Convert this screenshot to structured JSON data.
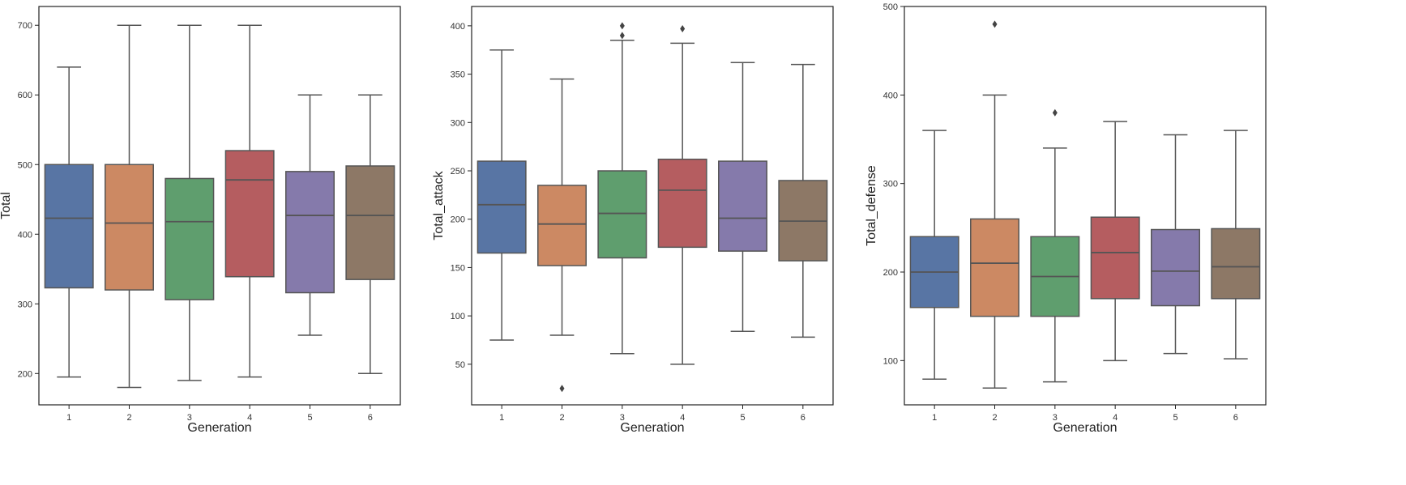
{
  "chart_data": [
    {
      "type": "box",
      "xlabel": "Generation",
      "ylabel": "Total",
      "categories": [
        "1",
        "2",
        "3",
        "4",
        "5",
        "6"
      ],
      "ylim": [
        155,
        727
      ],
      "yticks": [
        200,
        300,
        400,
        500,
        600,
        700
      ],
      "boxes": [
        {
          "whislo": 195,
          "q1": 323,
          "med": 423,
          "q3": 500,
          "whishi": 640,
          "fliers": []
        },
        {
          "whislo": 180,
          "q1": 320,
          "med": 416,
          "q3": 500,
          "whishi": 700,
          "fliers": []
        },
        {
          "whislo": 190,
          "q1": 306,
          "med": 418,
          "q3": 480,
          "whishi": 700,
          "fliers": []
        },
        {
          "whislo": 195,
          "q1": 339,
          "med": 478,
          "q3": 520,
          "whishi": 700,
          "fliers": []
        },
        {
          "whislo": 255,
          "q1": 316,
          "med": 427,
          "q3": 490,
          "whishi": 600,
          "fliers": []
        },
        {
          "whislo": 200,
          "q1": 335,
          "med": 427,
          "q3": 498,
          "whishi": 600,
          "fliers": []
        }
      ]
    },
    {
      "type": "box",
      "xlabel": "Generation",
      "ylabel": "Total_attack",
      "categories": [
        "1",
        "2",
        "3",
        "4",
        "5",
        "6"
      ],
      "ylim": [
        8,
        420
      ],
      "yticks": [
        50,
        100,
        150,
        200,
        250,
        300,
        350,
        400
      ],
      "boxes": [
        {
          "whislo": 75,
          "q1": 165,
          "med": 215,
          "q3": 260,
          "whishi": 375,
          "fliers": []
        },
        {
          "whislo": 80,
          "q1": 152,
          "med": 195,
          "q3": 235,
          "whishi": 345,
          "fliers": [
            25
          ]
        },
        {
          "whislo": 61,
          "q1": 160,
          "med": 206,
          "q3": 250,
          "whishi": 385,
          "fliers": [
            390,
            400
          ]
        },
        {
          "whislo": 50,
          "q1": 171,
          "med": 230,
          "q3": 262,
          "whishi": 382,
          "fliers": [
            397
          ]
        },
        {
          "whislo": 84,
          "q1": 167,
          "med": 201,
          "q3": 260,
          "whishi": 362,
          "fliers": []
        },
        {
          "whislo": 78,
          "q1": 157,
          "med": 198,
          "q3": 240,
          "whishi": 360,
          "fliers": []
        }
      ]
    },
    {
      "type": "box",
      "xlabel": "Generation",
      "ylabel": "Total_defense",
      "categories": [
        "1",
        "2",
        "3",
        "4",
        "5",
        "6"
      ],
      "ylim": [
        50,
        500
      ],
      "yticks": [
        100,
        200,
        300,
        400,
        500
      ],
      "boxes": [
        {
          "whislo": 79,
          "q1": 160,
          "med": 200,
          "q3": 240,
          "whishi": 360,
          "fliers": []
        },
        {
          "whislo": 69,
          "q1": 150,
          "med": 210,
          "q3": 260,
          "whishi": 400,
          "fliers": [
            480
          ]
        },
        {
          "whislo": 76,
          "q1": 150,
          "med": 195,
          "q3": 240,
          "whishi": 340,
          "fliers": [
            380
          ]
        },
        {
          "whislo": 100,
          "q1": 170,
          "med": 222,
          "q3": 262,
          "whishi": 370,
          "fliers": []
        },
        {
          "whislo": 108,
          "q1": 162,
          "med": 201,
          "q3": 248,
          "whishi": 355,
          "fliers": []
        },
        {
          "whislo": 102,
          "q1": 170,
          "med": 206,
          "q3": 249,
          "whishi": 360,
          "fliers": []
        }
      ]
    }
  ],
  "colors": [
    "#5875a4",
    "#cc8963",
    "#5f9e6e",
    "#b55d60",
    "#857aab",
    "#8d7866"
  ],
  "line_color": "#555555"
}
